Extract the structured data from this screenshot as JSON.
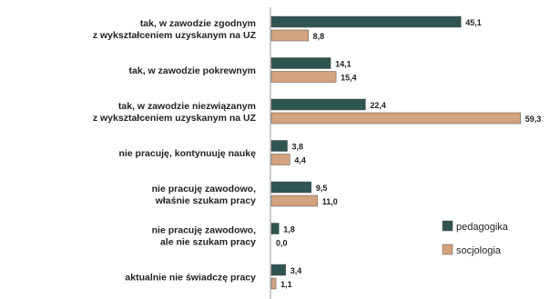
{
  "chart_data": {
    "type": "bar",
    "orientation": "horizontal",
    "categories": [
      [
        "tak, w zawodzie zgodnym",
        "z wykształceniem  uzyskanym na UZ"
      ],
      [
        "tak, w zawodzie pokrewnym"
      ],
      [
        "tak, w zawodzie niezwiązanym",
        "z wykształceniem uzyskanym na UZ"
      ],
      [
        "nie pracuję, kontynuuję naukę"
      ],
      [
        "nie pracuję zawodowo,",
        "właśnie szukam pracy"
      ],
      [
        "nie pracuję zawodowo,",
        "ale nie szukam pracy"
      ],
      [
        "aktualnie nie świadczę pracy"
      ]
    ],
    "series": [
      {
        "name": "pedagogika",
        "color": "#2f5550",
        "values": [
          45.1,
          14.1,
          22.4,
          3.8,
          9.5,
          1.8,
          3.4
        ]
      },
      {
        "name": "socjologia",
        "color": "#d3a27e",
        "values": [
          8.8,
          15.4,
          59.3,
          4.4,
          11.0,
          0.0,
          1.1
        ]
      }
    ],
    "value_labels": [
      [
        "45,1",
        "14,1",
        "22,4",
        "3,8",
        "9,5",
        "1,8",
        "3,4"
      ],
      [
        "8,8",
        "15,4",
        "59,3",
        "4,4",
        "11,0",
        "0,0",
        "1,1"
      ]
    ],
    "xlim": [
      0,
      60
    ],
    "legend_position": "right",
    "grid": false
  }
}
